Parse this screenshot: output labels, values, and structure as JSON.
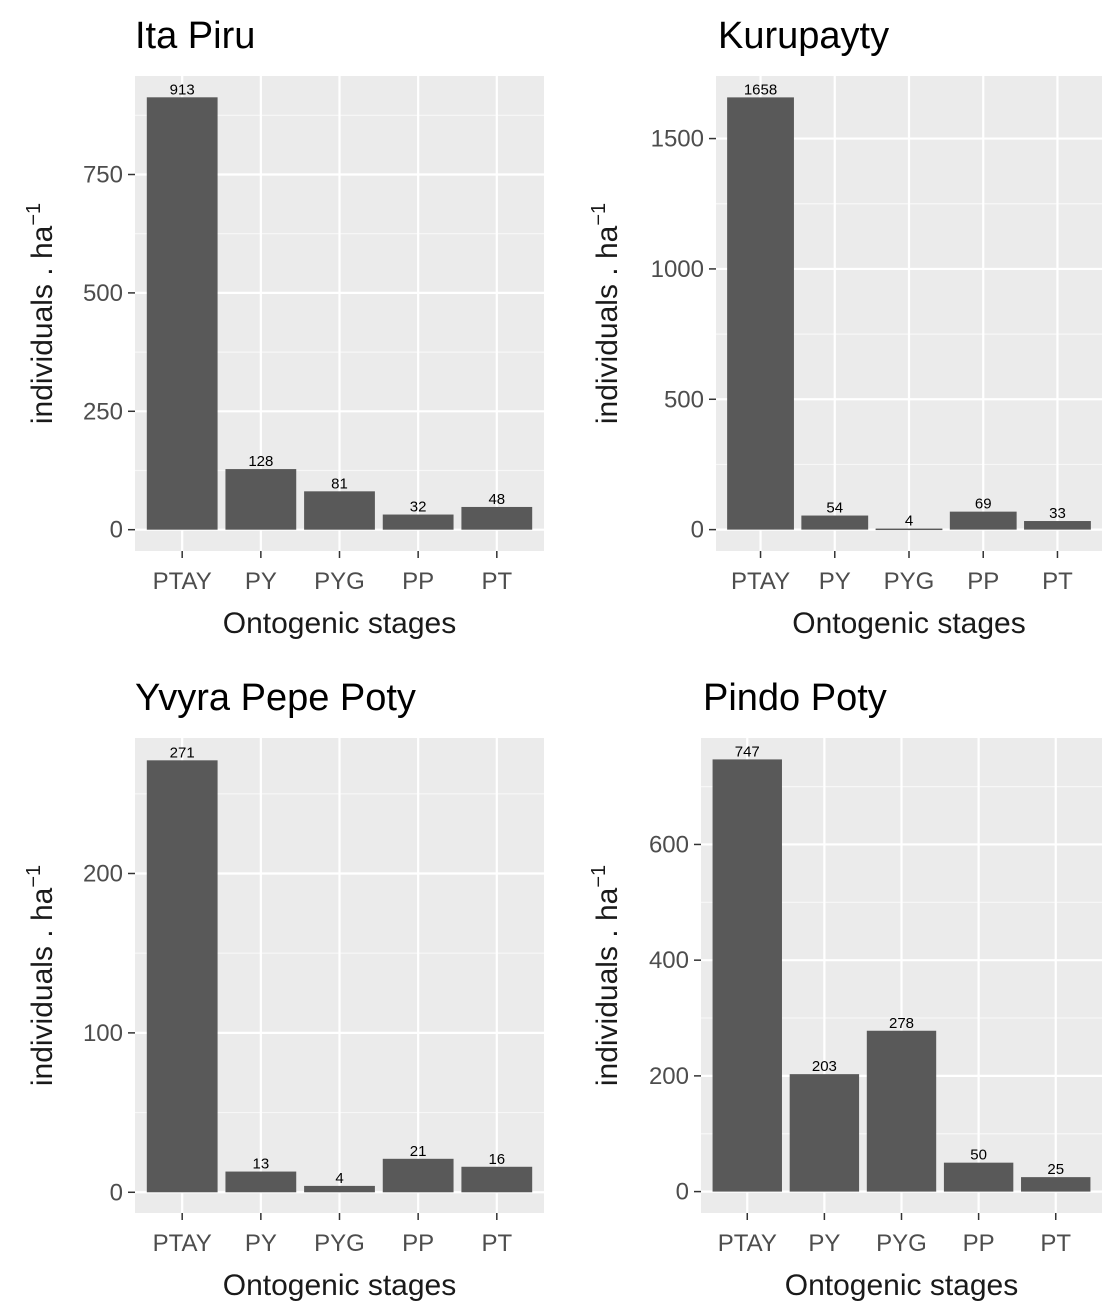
{
  "chart_data": [
    {
      "type": "bar",
      "title": "Ita Piru",
      "xlabel": "Ontogenic stages",
      "ylabel": "individuals . ha",
      "ylabel_superscript": "−1",
      "categories": [
        "PTAY",
        "PY",
        "PYG",
        "PP",
        "PT"
      ],
      "values": [
        913,
        128,
        81,
        32,
        48
      ],
      "data_labels": [
        "913",
        "128",
        "81",
        "32",
        "48"
      ],
      "yticks": [
        0,
        250,
        500,
        750
      ],
      "ytick_labels": [
        "0",
        "250",
        "500",
        "750"
      ],
      "ylim": [
        -45,
        958
      ],
      "grid": true,
      "bar_color": "#595959",
      "panel_bg": "#ebebeb"
    },
    {
      "type": "bar",
      "title": "Kurupayty",
      "xlabel": "Ontogenic stages",
      "ylabel": "individuals . ha",
      "ylabel_superscript": "−1",
      "categories": [
        "PTAY",
        "PY",
        "PYG",
        "PP",
        "PT"
      ],
      "values": [
        1658,
        54,
        4,
        69,
        33
      ],
      "data_labels": [
        "1658",
        "54",
        "4",
        "69",
        "33"
      ],
      "yticks": [
        0,
        500,
        1000,
        1500
      ],
      "ytick_labels": [
        "0",
        "500",
        "1000",
        "1500"
      ],
      "ylim": [
        -82,
        1740
      ],
      "grid": true,
      "bar_color": "#595959",
      "panel_bg": "#ebebeb"
    },
    {
      "type": "bar",
      "title": "Yvyra Pepe Poty",
      "xlabel": "Ontogenic stages",
      "ylabel": "individuals . ha",
      "ylabel_superscript": "−1",
      "categories": [
        "PTAY",
        "PY",
        "PYG",
        "PP",
        "PT"
      ],
      "values": [
        271,
        13,
        4,
        21,
        16
      ],
      "data_labels": [
        "271",
        "13",
        "4",
        "21",
        "16"
      ],
      "yticks": [
        0,
        100,
        200
      ],
      "ytick_labels": [
        "0",
        "100",
        "200"
      ],
      "ylim": [
        -13,
        285
      ],
      "grid": true,
      "bar_color": "#595959",
      "panel_bg": "#ebebeb"
    },
    {
      "type": "bar",
      "title": "Pindo Poty",
      "xlabel": "Ontogenic stages",
      "ylabel": "individuals . ha",
      "ylabel_superscript": "−1",
      "categories": [
        "PTAY",
        "PY",
        "PYG",
        "PP",
        "PT"
      ],
      "values": [
        747,
        203,
        278,
        50,
        25
      ],
      "data_labels": [
        "747",
        "203",
        "278",
        "50",
        "25"
      ],
      "yticks": [
        0,
        200,
        400,
        600
      ],
      "ytick_labels": [
        "0",
        "200",
        "400",
        "600"
      ],
      "ylim": [
        -37,
        784
      ],
      "grid": true,
      "bar_color": "#595959",
      "panel_bg": "#ebebeb"
    }
  ]
}
